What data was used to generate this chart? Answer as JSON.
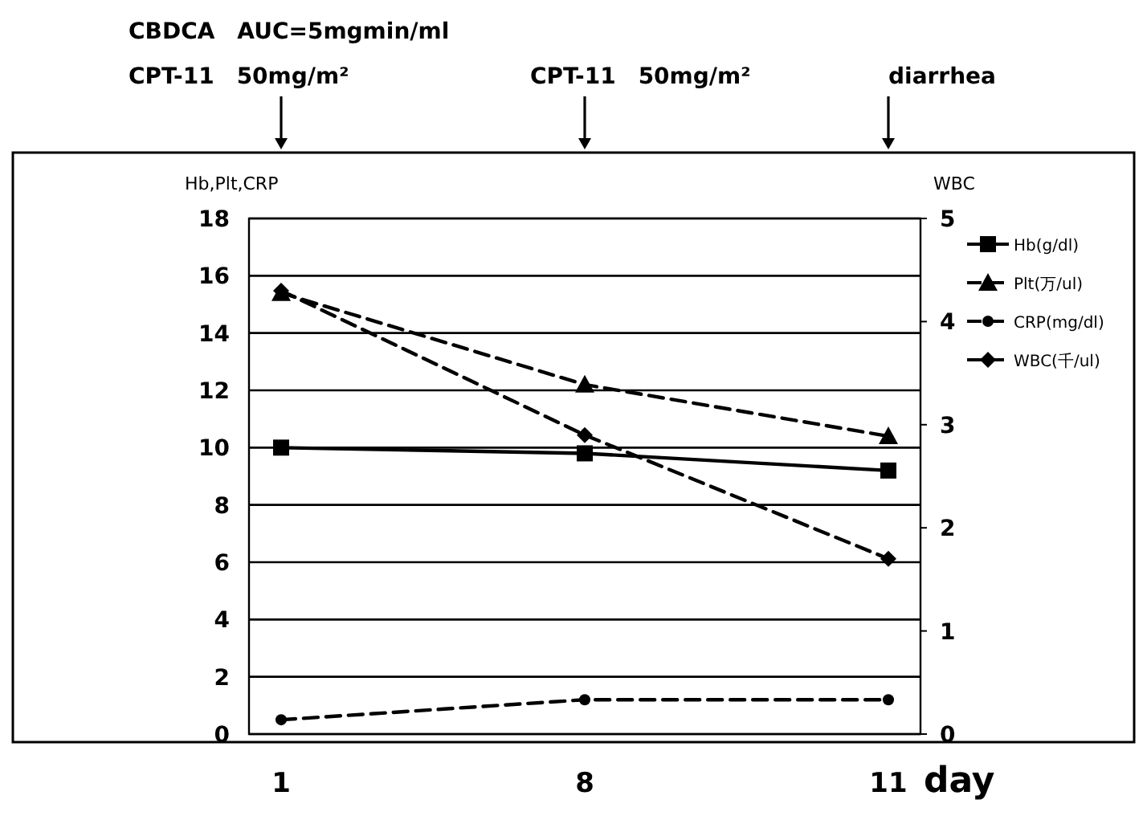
{
  "chart_data": {
    "type": "line",
    "categories": [
      "1",
      "8",
      "11"
    ],
    "xlabel": "day",
    "ylabel": "Hb,Plt,CRP",
    "y2label": "WBC",
    "ylim": [
      0,
      18
    ],
    "yticks": [
      0,
      2,
      4,
      6,
      8,
      10,
      12,
      14,
      16,
      18
    ],
    "y2lim": [
      0,
      5
    ],
    "y2ticks": [
      0,
      1,
      2,
      3,
      4,
      5
    ],
    "grid": "y",
    "legend": "right",
    "series": [
      {
        "name": "Hb(g/dl)",
        "color": "#000000",
        "values": [
          10.0,
          9.8,
          9.2
        ],
        "marker": "square",
        "line_style": "solid"
      },
      {
        "name": "Plt(万/ul)",
        "color": "#000000",
        "values": [
          15.4,
          12.2,
          10.4
        ],
        "marker": "triangle",
        "line_style": "dashed"
      },
      {
        "name": "CRP(mg/dl)",
        "color": "#000000",
        "values": [
          0.5,
          1.2,
          1.2
        ],
        "marker": "circle",
        "line_style": "dashed"
      },
      {
        "name": "WBC(千/ul)",
        "color": "#000000",
        "values": [
          4.3,
          2.9,
          1.7
        ],
        "marker": "diamond",
        "line_style": "dashed",
        "axis": "y2"
      }
    ],
    "annotations": [
      "CBDCA　AUC=5mgmin/ml",
      "CPT-11　50mg/m²",
      "CPT-11　50mg/m²",
      "diarrhea"
    ]
  }
}
